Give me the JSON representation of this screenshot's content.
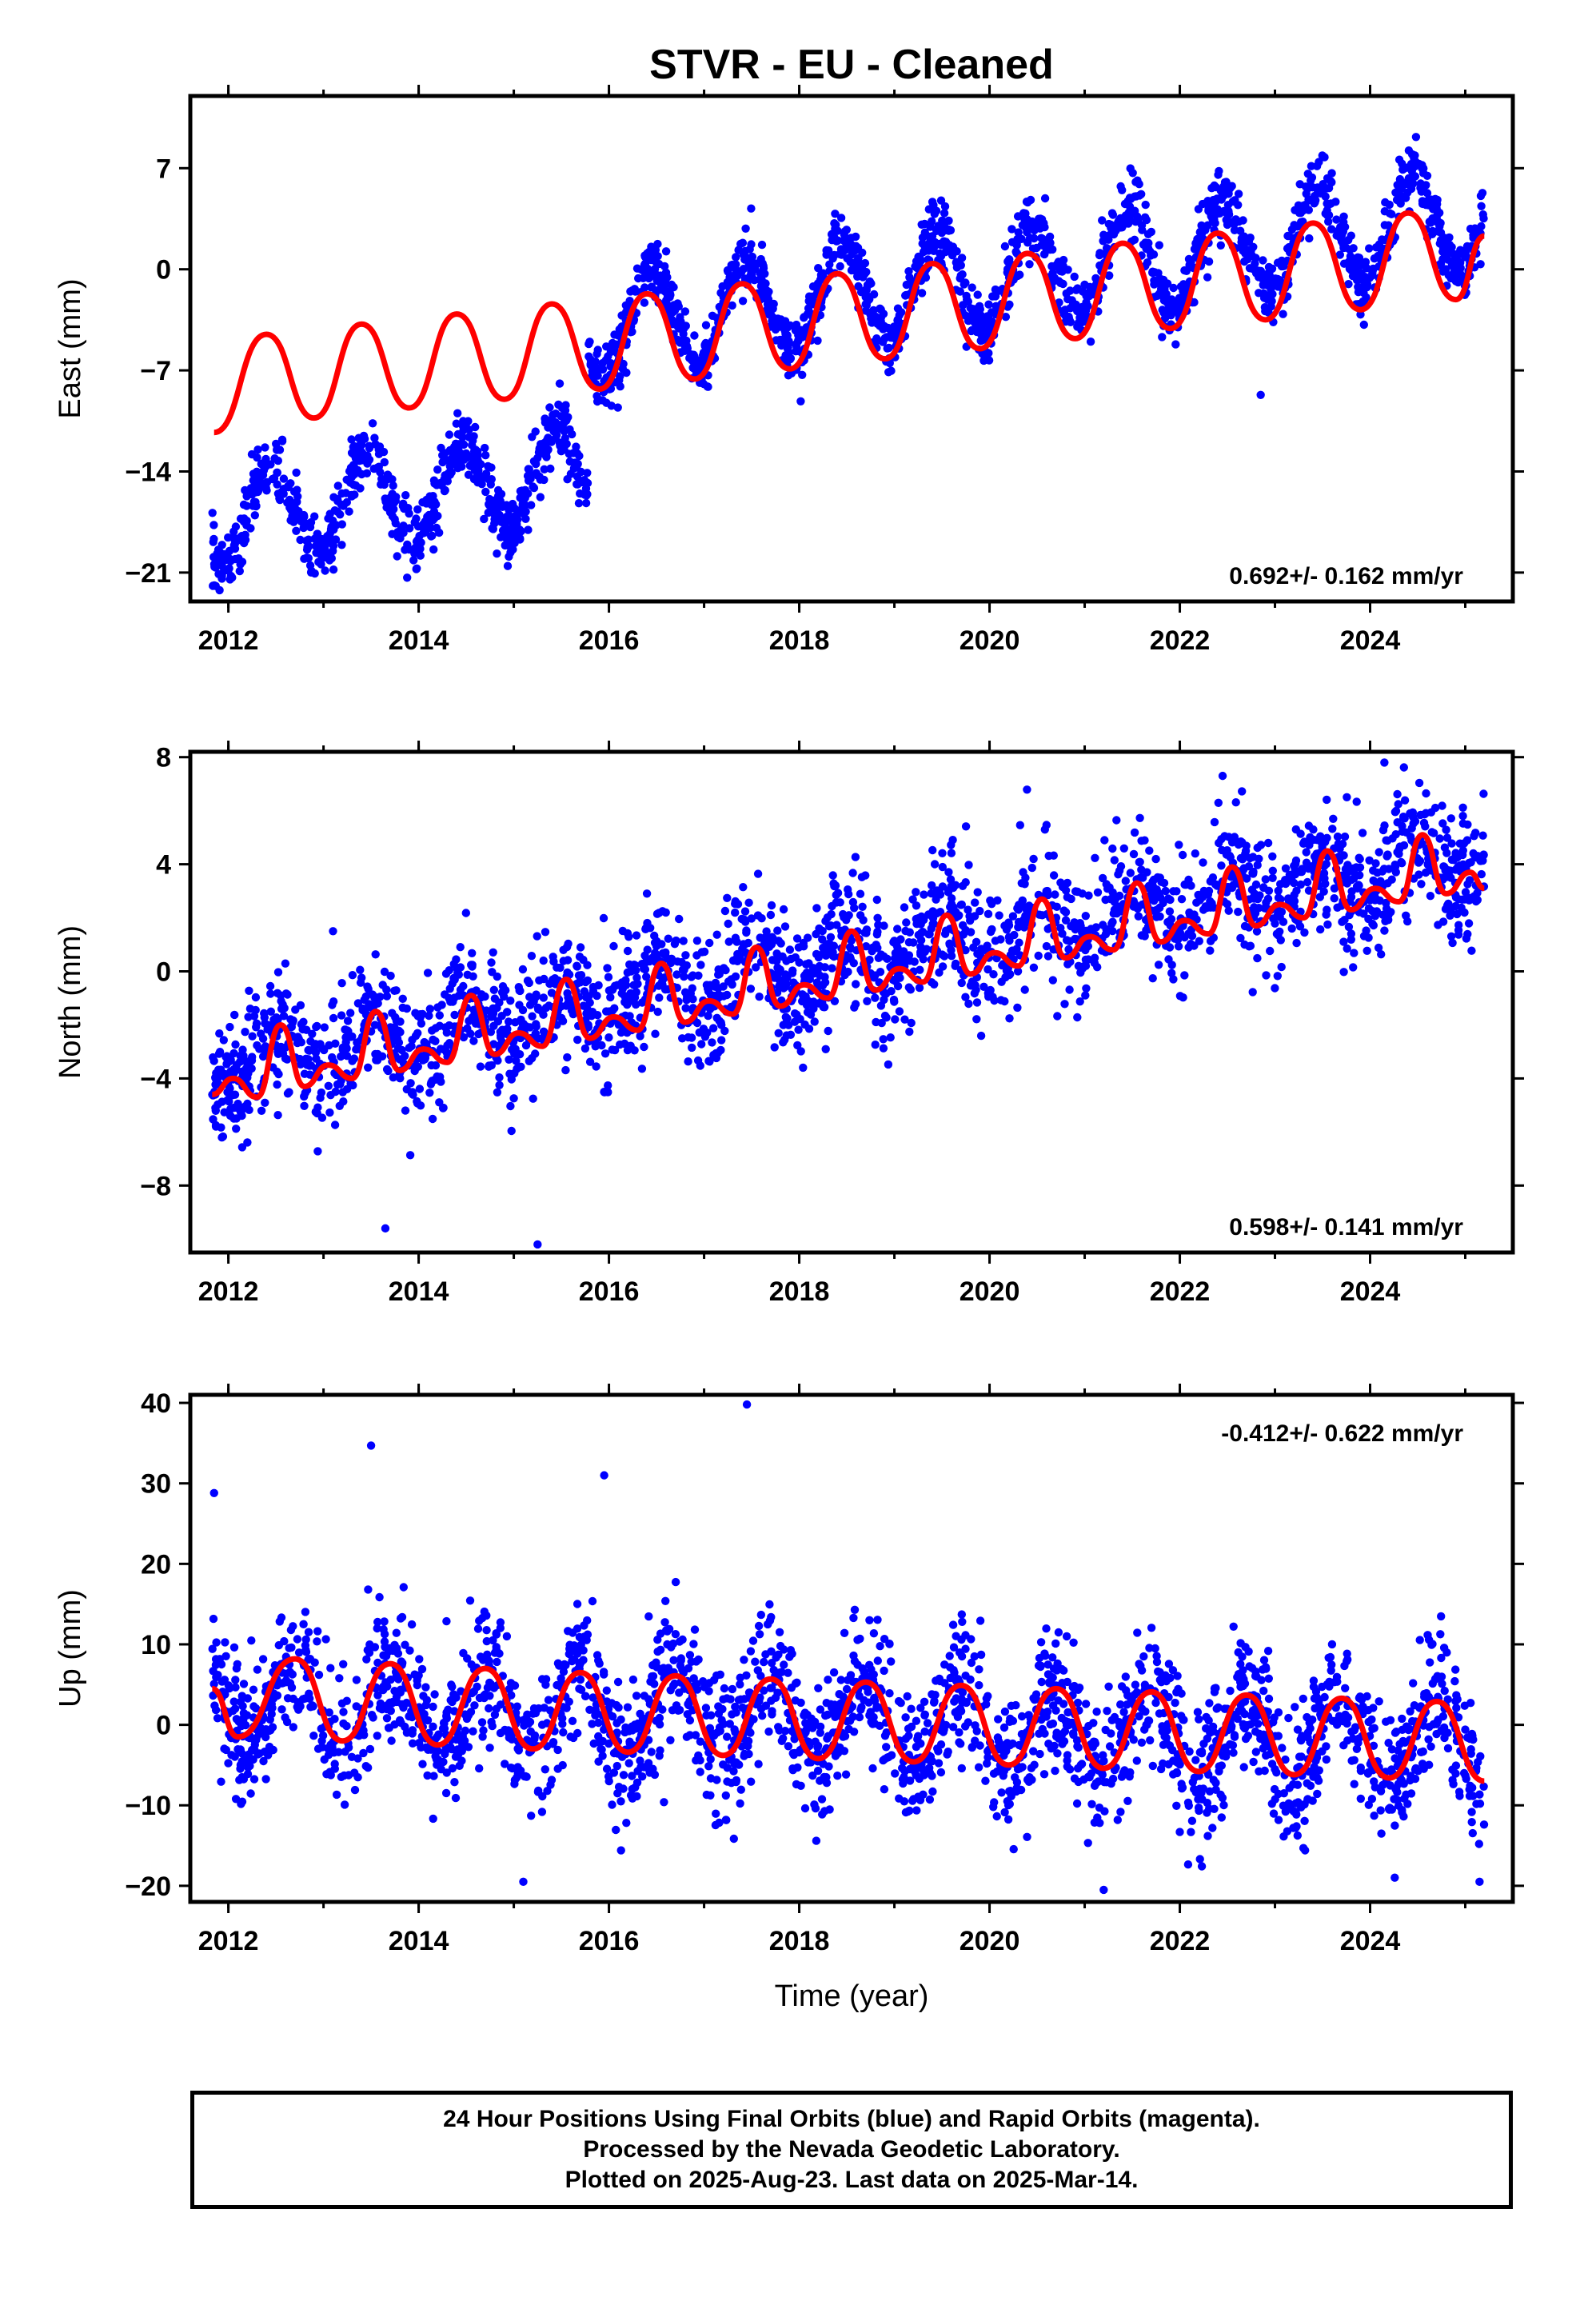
{
  "chart_data": [
    {
      "type": "scatter",
      "title": "STVR  - EU - Cleaned",
      "ylabel": "East (mm)",
      "xlabel": "",
      "xlim": [
        2011.6,
        2025.5
      ],
      "ylim": [
        -23,
        12
      ],
      "xticks": [
        2012,
        2014,
        2016,
        2018,
        2020,
        2022,
        2024
      ],
      "yticks": [
        -21,
        -14,
        -7,
        0,
        7
      ],
      "rate_label": "0.692+/- 0.162 mm/yr",
      "grid": false,
      "series": [
        {
          "name": "Final Orbits",
          "color": "#0000ff",
          "marker": "dot",
          "x_range": [
            2011.83,
            2025.2
          ],
          "segments": [
            {
              "x_start": 2011.83,
              "x_end": 2015.78,
              "base_at_start": -17.5,
              "slope_per_year": 0.9,
              "annual_amplitude": 3.2,
              "peak_phase_year": 0.45,
              "scatter": 1.1
            },
            {
              "x_start": 2015.78,
              "x_end": 2025.2,
              "base_at_start": -4.0,
              "slope_per_year": 0.8,
              "annual_amplitude": 3.5,
              "peak_phase_year": 0.45,
              "scatter": 1.1
            }
          ],
          "outliers": [
            {
              "x": 2022.85,
              "y": -8.7
            }
          ]
        },
        {
          "name": "Model",
          "color": "#ff0000",
          "type": "line",
          "x": [
            2011.85,
            2012.4,
            2012.9,
            2013.4,
            2013.9,
            2014.4,
            2014.9,
            2015.4,
            2015.9,
            2016.4,
            2016.9,
            2017.4,
            2017.9,
            2018.4,
            2018.9,
            2019.4,
            2019.9,
            2020.4,
            2020.9,
            2021.4,
            2021.9,
            2022.4,
            2022.9,
            2023.4,
            2023.9,
            2024.4,
            2024.9,
            2025.2
          ],
          "y": [
            -11.3,
            -4.5,
            -10.3,
            -3.8,
            -9.6,
            -3.1,
            -9.0,
            -2.4,
            -8.3,
            -1.7,
            -7.6,
            -1.0,
            -6.9,
            -0.3,
            -6.2,
            0.4,
            -5.5,
            1.1,
            -4.8,
            1.8,
            -4.1,
            2.5,
            -3.5,
            3.2,
            -2.8,
            3.9,
            -2.1,
            2.3
          ]
        }
      ]
    },
    {
      "type": "scatter",
      "title": "",
      "ylabel": "North (mm)",
      "xlabel": "",
      "xlim": [
        2011.6,
        2025.5
      ],
      "ylim": [
        -10.5,
        8.2
      ],
      "xticks": [
        2012,
        2014,
        2016,
        2018,
        2020,
        2022,
        2024
      ],
      "yticks": [
        -8,
        -4,
        0,
        4,
        8
      ],
      "rate_label": "0.598+/- 0.141 mm/yr",
      "grid": false,
      "series": [
        {
          "name": "Final Orbits",
          "color": "#0000ff",
          "marker": "dot",
          "x_range": [
            2011.83,
            2025.2
          ],
          "segments": [
            {
              "x_start": 2011.83,
              "x_end": 2025.2,
              "base_at_start": -3.6,
              "slope_per_year": 0.6,
              "annual_amplitude": 0.9,
              "peak_phase_year": 0.5,
              "scatter": 1.2
            }
          ],
          "outliers": [
            {
              "x": 2013.65,
              "y": -9.6
            },
            {
              "x": 2015.25,
              "y": -10.2
            },
            {
              "x": 2024.15,
              "y": 7.8
            },
            {
              "x": 2022.45,
              "y": 7.3
            },
            {
              "x": 2013.1,
              "y": 1.5
            }
          ]
        },
        {
          "name": "Model",
          "color": "#ff0000",
          "type": "line",
          "x": [
            2011.83,
            2012.05,
            2012.3,
            2012.55,
            2012.8,
            2013.05,
            2013.3,
            2013.55,
            2013.8,
            2014.05,
            2014.3,
            2014.55,
            2014.8,
            2015.05,
            2015.3,
            2015.55,
            2015.8,
            2016.05,
            2016.3,
            2016.55,
            2016.8,
            2017.05,
            2017.3,
            2017.55,
            2017.8,
            2018.05,
            2018.3,
            2018.55,
            2018.8,
            2019.05,
            2019.3,
            2019.55,
            2019.8,
            2020.05,
            2020.3,
            2020.55,
            2020.8,
            2021.05,
            2021.3,
            2021.55,
            2021.8,
            2022.05,
            2022.3,
            2022.55,
            2022.8,
            2023.05,
            2023.3,
            2023.55,
            2023.8,
            2024.05,
            2024.3,
            2024.55,
            2024.8,
            2025.05,
            2025.2
          ],
          "y": [
            -4.6,
            -4.0,
            -4.7,
            -2.0,
            -4.3,
            -3.5,
            -4.0,
            -1.5,
            -3.7,
            -2.9,
            -3.4,
            -0.9,
            -3.1,
            -2.3,
            -2.8,
            -0.3,
            -2.5,
            -1.7,
            -2.2,
            0.3,
            -1.9,
            -1.1,
            -1.6,
            0.9,
            -1.3,
            -0.5,
            -1.0,
            1.5,
            -0.7,
            0.1,
            -0.4,
            2.1,
            -0.1,
            0.7,
            0.2,
            2.7,
            0.5,
            1.3,
            0.8,
            3.3,
            1.1,
            1.9,
            1.4,
            3.9,
            1.7,
            2.5,
            2.0,
            4.5,
            2.3,
            3.1,
            2.6,
            5.1,
            2.9,
            3.7,
            3.1
          ]
        }
      ]
    },
    {
      "type": "scatter",
      "title": "",
      "ylabel": "Up (mm)",
      "xlabel": "Time (year)",
      "xlim": [
        2011.6,
        2025.5
      ],
      "ylim": [
        -22,
        41
      ],
      "xticks": [
        2012,
        2014,
        2016,
        2018,
        2020,
        2022,
        2024
      ],
      "yticks": [
        -20,
        -10,
        0,
        10,
        20,
        30,
        40
      ],
      "rate_label": "-0.412+/- 0.622 mm/yr",
      "grid": false,
      "series": [
        {
          "name": "Final Orbits",
          "color": "#0000ff",
          "marker": "dot",
          "x_range": [
            2011.83,
            2025.2
          ],
          "segments": [
            {
              "x_start": 2011.83,
              "x_end": 2025.2,
              "base_at_start": 3.0,
              "slope_per_year": -0.41,
              "annual_amplitude": 5.0,
              "peak_phase_year": 0.7,
              "scatter": 4.2
            }
          ],
          "outliers": [
            {
              "x": 2011.85,
              "y": 28.8
            },
            {
              "x": 2013.5,
              "y": 34.7
            },
            {
              "x": 2015.95,
              "y": 31.0
            },
            {
              "x": 2017.45,
              "y": 39.8
            },
            {
              "x": 2015.1,
              "y": -19.5
            },
            {
              "x": 2021.2,
              "y": -20.5
            },
            {
              "x": 2025.15,
              "y": -19.5
            }
          ]
        },
        {
          "name": "Model",
          "color": "#ff0000",
          "type": "line",
          "x": [
            2011.83,
            2012.1,
            2012.7,
            2013.2,
            2013.7,
            2014.2,
            2014.7,
            2015.2,
            2015.7,
            2016.2,
            2016.7,
            2017.2,
            2017.7,
            2018.2,
            2018.7,
            2019.2,
            2019.7,
            2020.2,
            2020.7,
            2021.2,
            2021.7,
            2022.2,
            2022.7,
            2023.2,
            2023.7,
            2024.2,
            2024.7,
            2025.2
          ],
          "y": [
            4.5,
            -1.5,
            8.2,
            -2.0,
            7.6,
            -2.5,
            7.0,
            -3.0,
            6.5,
            -3.4,
            6.1,
            -3.8,
            5.7,
            -4.2,
            5.3,
            -4.6,
            4.9,
            -5.0,
            4.5,
            -5.4,
            4.1,
            -5.8,
            3.7,
            -6.2,
            3.3,
            -6.6,
            2.9,
            -7.0
          ]
        }
      ]
    }
  ],
  "footer": {
    "line1": "24 Hour Positions Using Final Orbits (blue) and Rapid Orbits (magenta).",
    "line2": "Processed by the Nevada Geodetic Laboratory.",
    "line3": "Plotted on 2025-Aug-23. Last data on 2025-Mar-14."
  }
}
